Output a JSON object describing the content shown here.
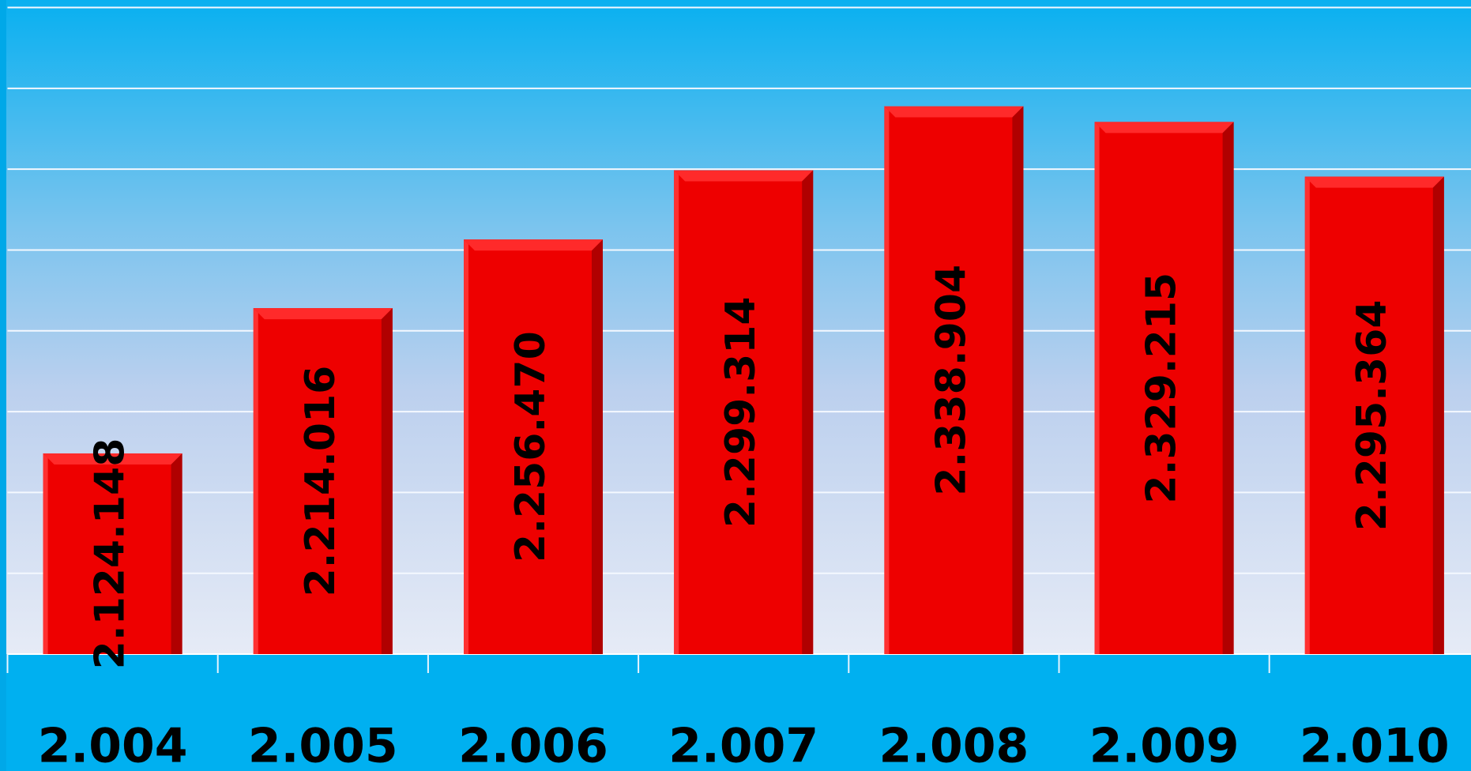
{
  "chart_data": {
    "type": "bar",
    "categories": [
      "2.004",
      "2.005",
      "2.006",
      "2.007",
      "2.008",
      "2.009",
      "2.010"
    ],
    "values": [
      2124148,
      2214016,
      2256470,
      2299314,
      2338904,
      2329215,
      2295364
    ],
    "value_labels": [
      "2.124.148",
      "2.214.016",
      "2.256.470",
      "2.299.314",
      "2.338.904",
      "2.329.215",
      "2.295.364"
    ],
    "color": "#ee0000",
    "ylim": [
      2000000,
      2400000
    ],
    "yticks": [
      2000000,
      2050000,
      2100000,
      2150000,
      2200000,
      2250000,
      2300000,
      2350000,
      2400000
    ],
    "grid": true
  }
}
